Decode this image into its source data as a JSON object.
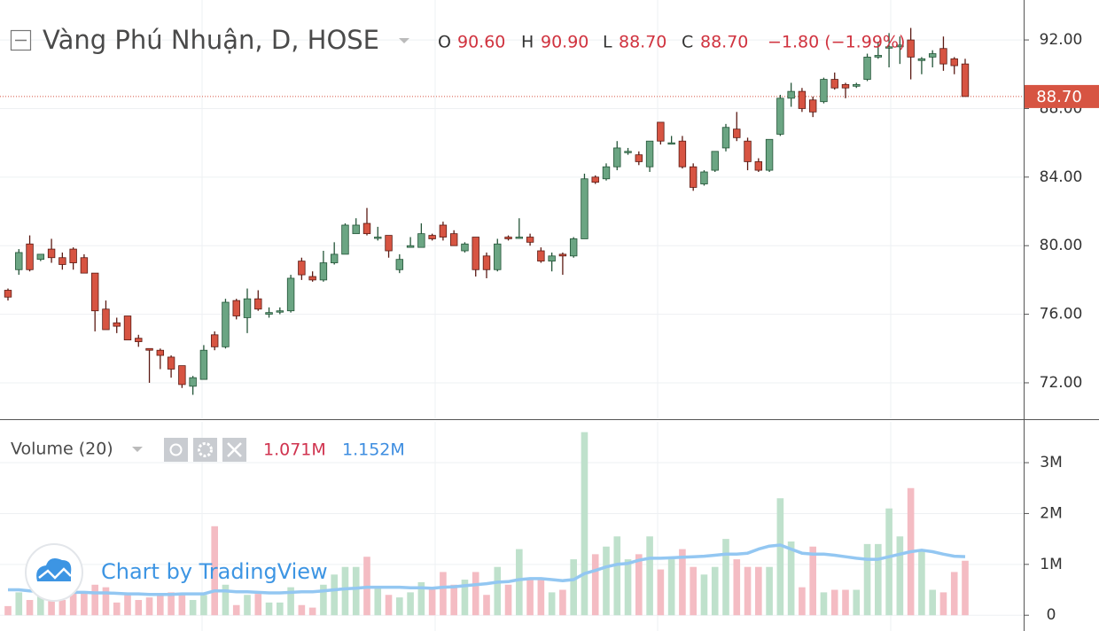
{
  "chart_data": {
    "type": "candlestick",
    "title": "Vàng Phú Nhuận, D, HOSE",
    "header": {
      "o_label": "O",
      "o": "90.60",
      "h_label": "H",
      "h": "90.90",
      "l_label": "L",
      "l": "88.70",
      "c_label": "C",
      "c": "88.70",
      "change": "−1.80 (−1.99%)"
    },
    "up_color": "#6ba583",
    "up_border": "#225437",
    "down_color": "#d75442",
    "down_border": "#5b1a13",
    "open": [
      77.4,
      78.6,
      80.1,
      79.2,
      79.8,
      79.3,
      79.8,
      79.3,
      78.4,
      76.3,
      75.5,
      75.9,
      74.6,
      74.0,
      73.9,
      73.5,
      73.0,
      71.8,
      72.2,
      74.8,
      74.1,
      76.8,
      75.8,
      76.9,
      76.0,
      76.2,
      76.2,
      79.1,
      78.2,
      78.0,
      79.0,
      79.5,
      80.7,
      81.3,
      80.5,
      80.6,
      78.6,
      79.9,
      79.9,
      80.6,
      81.2,
      80.7,
      79.7,
      80.5,
      79.4,
      78.6,
      80.5,
      80.5,
      80.5,
      79.7,
      79.1,
      79.5,
      79.4,
      80.4,
      84.0,
      83.9,
      84.6,
      85.5,
      85.3,
      84.6,
      87.2,
      86.0,
      86.1,
      84.6,
      83.6,
      84.4,
      85.7,
      86.8,
      86.1,
      84.9,
      84.4,
      86.5,
      88.6,
      89.0,
      88.5,
      88.4,
      89.7,
      89.4,
      89.3,
      89.7,
      91.0,
      91.6,
      91.6,
      92.0,
      90.8,
      91.0,
      91.5,
      90.9,
      90.6
    ],
    "high": [
      77.5,
      79.8,
      80.6,
      79.5,
      80.4,
      79.6,
      79.9,
      79.5,
      78.4,
      76.8,
      75.8,
      75.9,
      74.8,
      74.0,
      74.0,
      73.6,
      73.0,
      72.4,
      74.2,
      75.0,
      76.9,
      76.9,
      77.5,
      77.4,
      76.4,
      76.4,
      78.3,
      79.3,
      78.5,
      79.7,
      80.2,
      81.3,
      81.6,
      82.2,
      81.1,
      80.6,
      79.5,
      80.5,
      81.3,
      80.7,
      81.4,
      80.9,
      80.2,
      80.5,
      79.6,
      80.4,
      80.6,
      81.6,
      80.7,
      79.9,
      79.6,
      79.6,
      80.5,
      84.2,
      84.1,
      84.8,
      86.1,
      85.7,
      85.5,
      86.1,
      87.2,
      86.4,
      86.4,
      84.8,
      84.4,
      85.5,
      87.1,
      87.8,
      86.3,
      85.1,
      86.2,
      88.8,
      89.5,
      89.2,
      88.7,
      89.8,
      90.1,
      89.5,
      89.5,
      91.2,
      91.9,
      92.4,
      92.2,
      92.7,
      91.0,
      91.4,
      92.2,
      91.0,
      90.9
    ],
    "low": [
      76.8,
      78.3,
      78.5,
      79.1,
      79.0,
      78.6,
      78.6,
      78.4,
      75.0,
      75.1,
      74.9,
      74.5,
      74.1,
      72.0,
      72.8,
      72.3,
      71.7,
      71.3,
      72.2,
      73.9,
      74.0,
      75.7,
      74.9,
      76.2,
      75.8,
      76.0,
      76.1,
      78.0,
      77.9,
      77.9,
      78.9,
      79.5,
      80.7,
      80.6,
      80.3,
      79.3,
      78.4,
      79.9,
      79.9,
      80.3,
      80.3,
      80.0,
      79.6,
      78.2,
      78.1,
      78.5,
      80.3,
      80.4,
      80.0,
      79.0,
      78.5,
      78.3,
      79.3,
      80.4,
      83.6,
      83.8,
      84.4,
      85.3,
      84.7,
      84.3,
      85.9,
      85.9,
      84.5,
      83.2,
      83.5,
      84.3,
      85.5,
      86.1,
      84.4,
      84.3,
      84.3,
      86.4,
      88.1,
      87.8,
      87.5,
      88.3,
      89.1,
      88.6,
      89.2,
      89.6,
      90.9,
      90.4,
      90.6,
      89.7,
      90.0,
      90.4,
      90.2,
      90.0,
      88.7
    ],
    "close": [
      77.0,
      79.6,
      78.6,
      79.5,
      79.3,
      78.9,
      79.0,
      78.4,
      76.2,
      75.1,
      75.3,
      74.5,
      74.4,
      73.9,
      73.6,
      72.8,
      71.9,
      72.3,
      73.9,
      74.1,
      76.7,
      75.9,
      76.9,
      76.3,
      76.1,
      76.2,
      78.1,
      78.3,
      78.0,
      79.0,
      79.5,
      81.2,
      81.2,
      80.7,
      80.5,
      79.7,
      79.2,
      80.0,
      80.7,
      80.4,
      80.5,
      80.0,
      80.1,
      78.6,
      78.6,
      80.1,
      80.4,
      80.5,
      80.2,
      79.1,
      79.4,
      79.4,
      80.4,
      83.9,
      83.7,
      84.6,
      85.7,
      85.5,
      84.9,
      86.1,
      86.1,
      86.0,
      84.6,
      83.4,
      84.3,
      85.5,
      86.9,
      86.3,
      84.9,
      84.4,
      86.2,
      88.6,
      89.0,
      88.0,
      87.8,
      89.7,
      89.2,
      89.2,
      89.4,
      91.0,
      91.1,
      91.6,
      91.7,
      91.0,
      90.9,
      91.2,
      90.6,
      90.5,
      88.7
    ],
    "last_price": {
      "value": 88.7,
      "label": "88.70"
    },
    "ylim": [
      69.93,
      94.33
    ],
    "yticks": [
      {
        "value": 72,
        "label": "72.00"
      },
      {
        "value": 76,
        "label": "76.00"
      },
      {
        "value": 80,
        "label": "80.00"
      },
      {
        "value": 84,
        "label": "84.00"
      },
      {
        "value": 88,
        "label": "88.00"
      },
      {
        "value": 92,
        "label": "92.00"
      }
    ],
    "grid": true,
    "volume": {
      "title": "Volume (20)",
      "value_label": "1.071M",
      "ma_label": "1.152M",
      "up_color": "#bfe1cc",
      "down_color": "#f4bcc3",
      "ma_color": "#93c7f2",
      "values": [
        0.18,
        0.45,
        0.3,
        0.45,
        0.3,
        0.3,
        0.55,
        0.45,
        0.6,
        0.55,
        0.25,
        0.4,
        0.3,
        0.35,
        0.4,
        0.45,
        0.4,
        0.3,
        0.4,
        1.75,
        0.6,
        0.2,
        0.4,
        0.42,
        0.25,
        0.25,
        0.55,
        0.2,
        0.15,
        0.6,
        0.8,
        0.95,
        0.95,
        1.15,
        0.55,
        0.4,
        0.35,
        0.45,
        0.65,
        0.55,
        0.85,
        0.6,
        0.7,
        0.85,
        0.4,
        0.95,
        0.6,
        1.3,
        0.7,
        0.7,
        0.45,
        0.5,
        1.1,
        3.6,
        1.2,
        1.35,
        1.55,
        1.1,
        1.2,
        1.55,
        0.9,
        1.1,
        1.3,
        0.95,
        0.8,
        0.95,
        1.5,
        1.1,
        0.95,
        0.95,
        0.95,
        2.3,
        1.45,
        0.55,
        1.35,
        0.45,
        0.5,
        0.5,
        0.5,
        1.4,
        1.4,
        2.1,
        1.55,
        2.5,
        1.25,
        0.5,
        0.45,
        0.85,
        1.071
      ],
      "ma": [
        0.5,
        0.5,
        0.48,
        0.47,
        0.46,
        0.45,
        0.45,
        0.45,
        0.44,
        0.44,
        0.43,
        0.42,
        0.42,
        0.41,
        0.41,
        0.41,
        0.42,
        0.42,
        0.42,
        0.48,
        0.48,
        0.46,
        0.46,
        0.45,
        0.44,
        0.44,
        0.45,
        0.46,
        0.46,
        0.48,
        0.5,
        0.52,
        0.53,
        0.55,
        0.55,
        0.55,
        0.55,
        0.54,
        0.54,
        0.53,
        0.55,
        0.56,
        0.58,
        0.6,
        0.62,
        0.65,
        0.66,
        0.7,
        0.72,
        0.72,
        0.7,
        0.68,
        0.7,
        0.82,
        0.88,
        0.95,
        1.0,
        1.02,
        1.08,
        1.12,
        1.12,
        1.13,
        1.14,
        1.15,
        1.16,
        1.18,
        1.2,
        1.2,
        1.22,
        1.3,
        1.36,
        1.38,
        1.3,
        1.22,
        1.2,
        1.2,
        1.18,
        1.15,
        1.12,
        1.1,
        1.1,
        1.15,
        1.2,
        1.25,
        1.28,
        1.25,
        1.2,
        1.16,
        1.152
      ],
      "ylim": [
        -0.31,
        3.82
      ],
      "yticks": [
        0,
        {
          "value": 1,
          "label": "1M"
        },
        {
          "value": 2,
          "label": "2M"
        },
        {
          "value": 3,
          "label": "3M"
        }
      ]
    },
    "watermark": "Chart by TradingView"
  }
}
